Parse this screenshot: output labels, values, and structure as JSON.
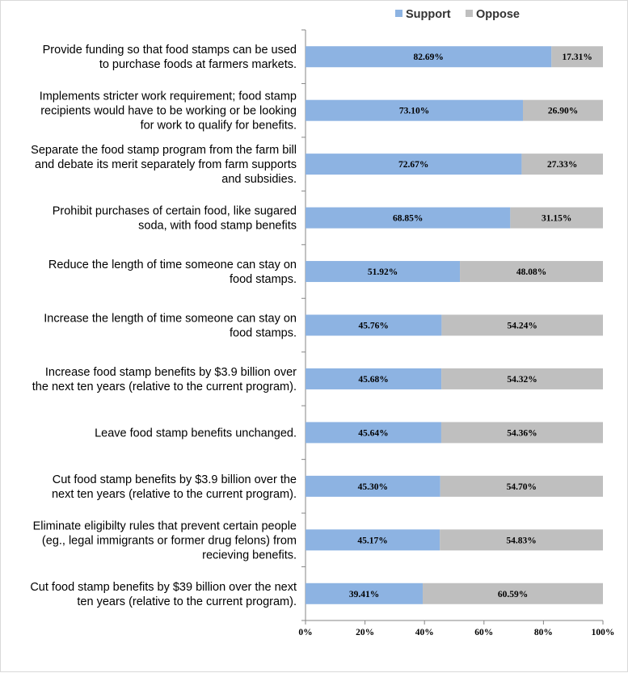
{
  "chart_data": {
    "type": "bar",
    "orientation": "horizontal",
    "stacked": "percent",
    "title": "",
    "xlabel": "",
    "ylabel": "",
    "xlim": [
      0,
      100
    ],
    "x_ticks": [
      "0%",
      "20%",
      "40%",
      "60%",
      "80%",
      "100%"
    ],
    "grid": false,
    "legend_position": "top-right",
    "categories": [
      "Provide funding so that food stamps can be used\nto purchase foods at farmers markets.",
      "Implements stricter work requirement; food stamp\nrecipients would have to be working or be looking\nfor work to qualify for benefits.",
      "Separate the food stamp program from the farm bill\nand debate its merit separately from farm supports\nand subsidies.",
      "Prohibit purchases of certain food, like sugared\nsoda, with food stamp benefits",
      "Reduce the length of time someone can stay on\nfood stamps.",
      "Increase the length of time someone can stay on\nfood stamps.",
      "Increase food stamp benefits by $3.9 billion over\nthe next ten years (relative to the current program).",
      "Leave food stamp benefits unchanged.",
      "Cut food stamp benefits by $3.9 billion over the\nnext ten years (relative to the current program).",
      "Eliminate eligibilty rules that prevent certain people\n(eg., legal immigrants or former drug felons) from\nrecieving benefits.",
      "Cut food stamp benefits by $39 billion over the next\nten years (relative to the current program)."
    ],
    "series": [
      {
        "name": "Support",
        "color": "#8db3e2",
        "values": [
          82.69,
          73.1,
          72.67,
          68.85,
          51.92,
          45.76,
          45.68,
          45.64,
          45.3,
          45.17,
          39.41
        ],
        "labels": [
          "82.69%",
          "73.10%",
          "72.67%",
          "68.85%",
          "51.92%",
          "45.76%",
          "45.68%",
          "45.64%",
          "45.30%",
          "45.17%",
          "39.41%"
        ]
      },
      {
        "name": "Oppose",
        "color": "#bfbfbf",
        "values": [
          17.31,
          26.9,
          27.33,
          31.15,
          48.08,
          54.24,
          54.32,
          54.36,
          54.7,
          54.83,
          60.59
        ],
        "labels": [
          "17.31%",
          "26.90%",
          "27.33%",
          "31.15%",
          "48.08%",
          "54.24%",
          "54.32%",
          "54.36%",
          "54.70%",
          "54.83%",
          "60.59%"
        ]
      }
    ]
  }
}
